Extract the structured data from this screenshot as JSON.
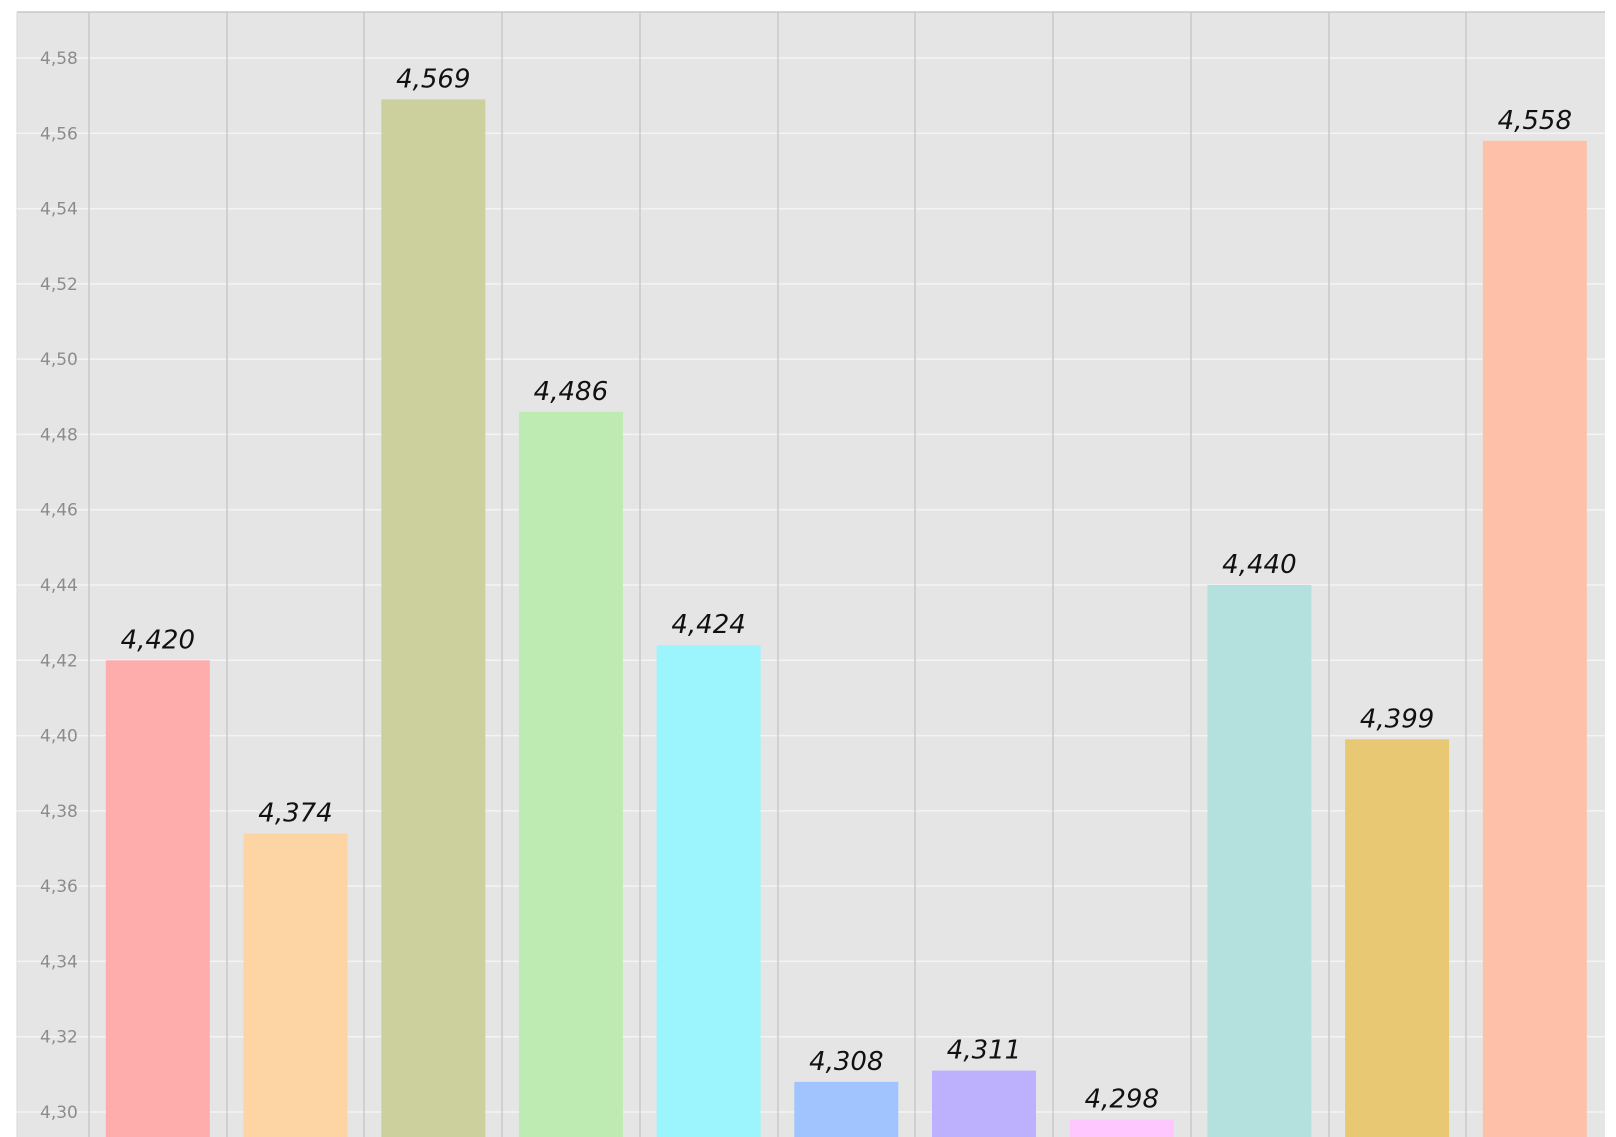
{
  "chart_data": {
    "type": "bar",
    "title": "",
    "xlabel": "",
    "ylabel": "",
    "ylim": [
      4.29,
      4.59
    ],
    "yticks": [
      "4,30",
      "4,32",
      "4,34",
      "4,36",
      "4,38",
      "4,40",
      "4,42",
      "4,44",
      "4,46",
      "4,48",
      "4,50",
      "4,52",
      "4,54",
      "4,56",
      "4,58"
    ],
    "ytick_values": [
      4.3,
      4.32,
      4.34,
      4.36,
      4.38,
      4.4,
      4.42,
      4.44,
      4.46,
      4.48,
      4.5,
      4.52,
      4.54,
      4.56,
      4.58
    ],
    "grid": true,
    "legend": "none",
    "values": [
      4.42,
      4.374,
      4.569,
      4.486,
      4.424,
      4.308,
      4.311,
      4.298,
      4.44,
      4.399,
      4.558
    ],
    "data_labels": [
      "4,420",
      "4,374",
      "4,569",
      "4,486",
      "4,424",
      "4,308",
      "4,311",
      "4,298",
      "4,440",
      "4,399",
      "4,558"
    ],
    "colors": [
      "#ffacac",
      "#fdd5a5",
      "#ccd09c",
      "#bdebb1",
      "#9cf4fc",
      "#a1c4fe",
      "#bdb1fe",
      "#fec8fe",
      "#b4e1de",
      "#e9c874",
      "#fec0a8"
    ],
    "background_color": "#e5e5e5"
  }
}
